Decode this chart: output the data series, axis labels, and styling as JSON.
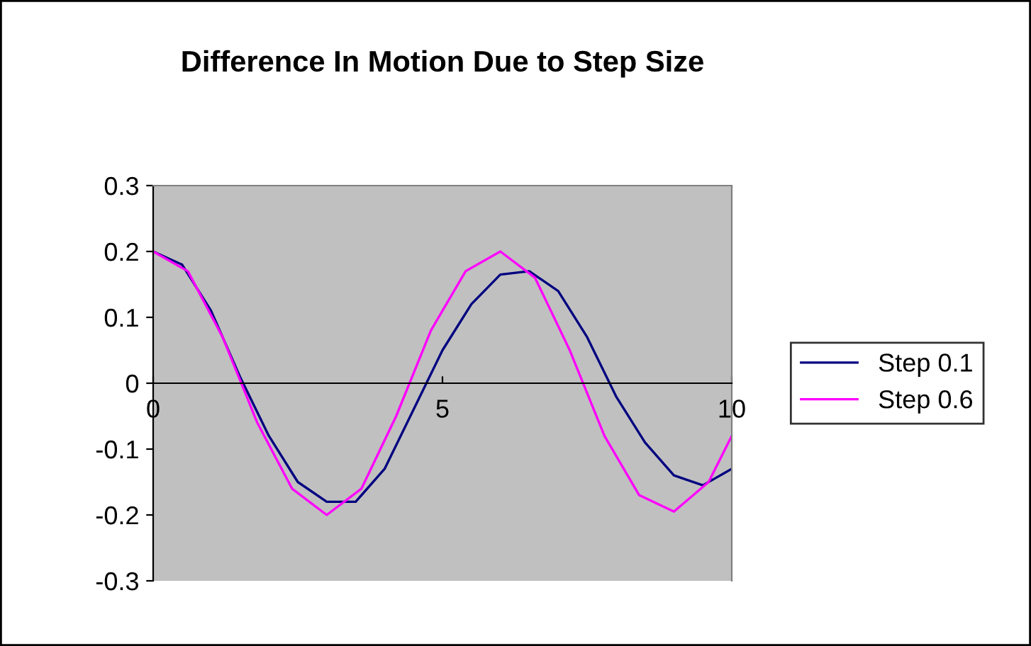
{
  "chart_data": {
    "type": "line",
    "title": "Difference In Motion Due to Step Size",
    "series": [
      {
        "name": "Step 0.1",
        "color": "#000080",
        "x": [
          0,
          0.5,
          1.0,
          1.5,
          2.0,
          2.5,
          3.0,
          3.5,
          4.0,
          4.5,
          5.0,
          5.5,
          6.0,
          6.5,
          7.0,
          7.5,
          8.0,
          8.5,
          9.0,
          9.5,
          10
        ],
        "values": [
          0.2,
          0.18,
          0.11,
          0.01,
          -0.08,
          -0.15,
          -0.18,
          -0.18,
          -0.13,
          -0.04,
          0.05,
          0.12,
          0.165,
          0.17,
          0.14,
          0.07,
          -0.02,
          -0.09,
          -0.14,
          -0.155,
          -0.13
        ]
      },
      {
        "name": "Step 0.6",
        "color": "#ff00ff",
        "x": [
          0,
          0.6,
          1.2,
          1.8,
          2.4,
          3.0,
          3.6,
          4.2,
          4.8,
          5.4,
          6.0,
          6.6,
          7.2,
          7.8,
          8.4,
          9.0,
          9.6,
          10
        ],
        "values": [
          0.2,
          0.17,
          0.07,
          -0.06,
          -0.16,
          -0.2,
          -0.16,
          -0.05,
          0.08,
          0.17,
          0.2,
          0.16,
          0.05,
          -0.08,
          -0.17,
          -0.195,
          -0.15,
          -0.08
        ]
      }
    ],
    "xlim": [
      0,
      10
    ],
    "xticks": [
      0,
      5,
      10
    ],
    "ylim": [
      -0.3,
      0.3
    ],
    "yticks": [
      -0.3,
      -0.2,
      -0.1,
      0,
      0.1,
      0.2,
      0.3
    ],
    "grid": false,
    "legend": "right",
    "marker": "none",
    "line_style": "solid"
  }
}
